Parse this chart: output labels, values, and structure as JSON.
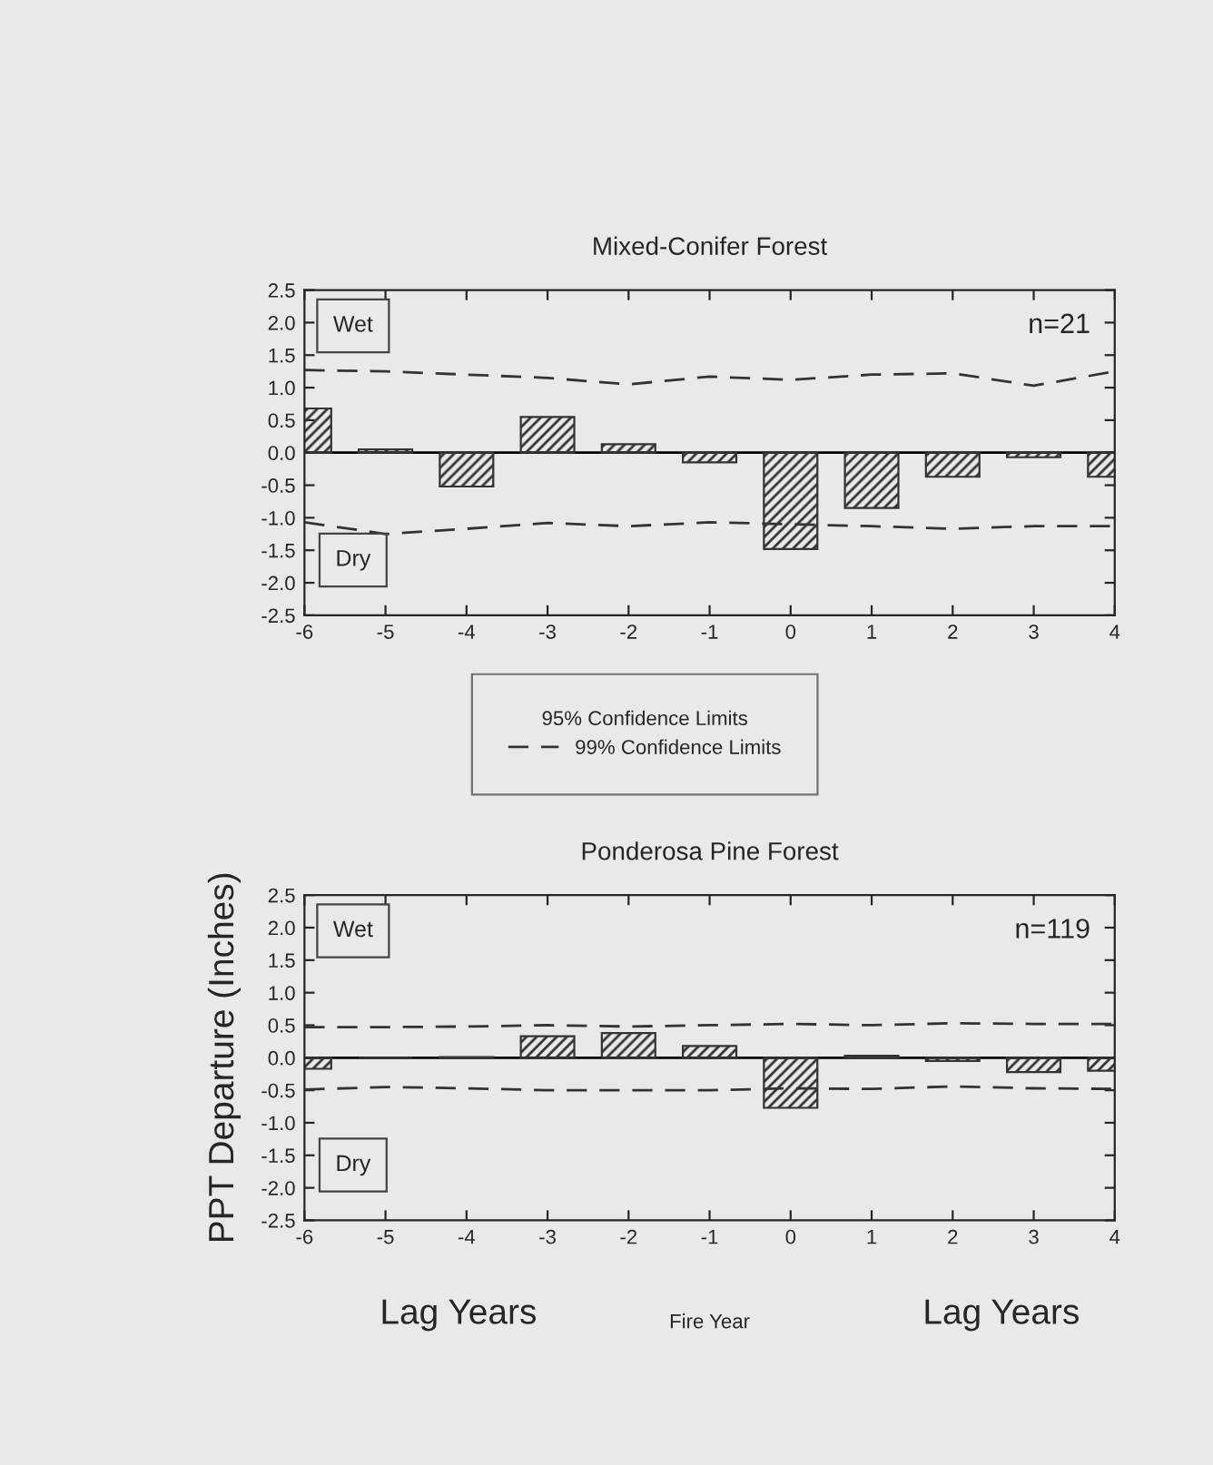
{
  "chart_data": [
    {
      "type": "bar",
      "title": "Mixed-Conifer Forest",
      "x": [
        -6,
        -5,
        -4,
        -3,
        -2,
        -1,
        0,
        1,
        2,
        3,
        4
      ],
      "series": [
        {
          "color": "#333333",
          "values": [
            0.68,
            0.05,
            -0.52,
            0.55,
            0.13,
            -0.15,
            -1.48,
            -0.85,
            -0.37,
            -0.07,
            -0.37
          ]
        },
        {
          "type": "line",
          "name": "99% Confidence Limits",
          "color": "#333333",
          "line_style": "dashed",
          "values": [
            1.27,
            1.25,
            1.2,
            1.15,
            1.05,
            1.17,
            1.12,
            1.2,
            1.22,
            1.03,
            1.25
          ]
        },
        {
          "type": "line",
          "color": "#333333",
          "line_style": "dashed",
          "values": [
            -1.07,
            -1.25,
            -1.17,
            -1.08,
            -1.13,
            -1.07,
            -1.1,
            -1.13,
            -1.17,
            -1.13,
            -1.13
          ]
        }
      ],
      "legend": "bottom",
      "legend_title": "95% Confidence Limits",
      "annotations": [
        "Wet",
        "Dry",
        "n=21"
      ],
      "xlim": [
        -6,
        4
      ],
      "xticks": [
        -6,
        -5,
        -4,
        -3,
        -2,
        -1,
        0,
        1,
        2,
        3,
        4
      ],
      "ylim": [
        -2.5,
        2.5
      ],
      "yticks": [
        {
          "value": -2.5,
          "label": "-2.5"
        },
        {
          "value": -2.0,
          "label": "-2.0"
        },
        {
          "value": -1.5,
          "label": "-1.5"
        },
        {
          "value": -1.0,
          "label": "-1.0"
        },
        {
          "value": -0.5,
          "label": "-0.5"
        },
        {
          "value": 0,
          "label": "0.0"
        },
        {
          "value": 0.5,
          "label": "0.5"
        },
        {
          "value": 1.0,
          "label": "1.0"
        },
        {
          "value": 1.5,
          "label": "1.5"
        },
        {
          "value": 2.0,
          "label": "2.0"
        },
        {
          "value": 2.5,
          "label": "2.5"
        }
      ]
    },
    {
      "type": "bar",
      "title": "Ponderosa Pine Forest",
      "ylabel": "PPT Departure (Inches)",
      "xlabel": "Fire Year",
      "x": [
        -6,
        -5,
        -4,
        -3,
        -2,
        -1,
        0,
        1,
        2,
        3,
        4
      ],
      "series": [
        {
          "color": "#333333",
          "values": [
            -0.17,
            0,
            0.01,
            0.33,
            0.38,
            0.18,
            -0.77,
            0.03,
            -0.05,
            -0.22,
            -0.2
          ]
        },
        {
          "type": "line",
          "color": "#333333",
          "line_style": "dashed",
          "values": [
            0.47,
            0.47,
            0.48,
            0.5,
            0.48,
            0.5,
            0.52,
            0.5,
            0.53,
            0.52,
            0.52
          ]
        },
        {
          "type": "line",
          "color": "#333333",
          "line_style": "dashed",
          "values": [
            -0.49,
            -0.45,
            -0.47,
            -0.5,
            -0.5,
            -0.5,
            -0.47,
            -0.48,
            -0.44,
            -0.47,
            -0.48
          ]
        }
      ],
      "legend": false,
      "annotations": [
        "Wet",
        "Dry",
        "n=119",
        "Lag Years",
        "Lag Years"
      ],
      "xlim": [
        -6,
        4
      ],
      "xticks": [
        -6,
        -5,
        -4,
        -3,
        -2,
        -1,
        0,
        1,
        2,
        3,
        4
      ],
      "ylim": [
        -2.5,
        2.5
      ],
      "yticks": [
        {
          "value": -2.5,
          "label": "-2.5"
        },
        {
          "value": -2.0,
          "label": "-2.0"
        },
        {
          "value": -1.5,
          "label": "-1.5"
        },
        {
          "value": -1.0,
          "label": "-1.0"
        },
        {
          "value": -0.5,
          "label": "-0.5"
        },
        {
          "value": 0,
          "label": "0.0"
        },
        {
          "value": 0.5,
          "label": "0.5"
        },
        {
          "value": 1.0,
          "label": "1.0"
        },
        {
          "value": 1.5,
          "label": "1.5"
        },
        {
          "value": 2.0,
          "label": "2.0"
        },
        {
          "value": 2.5,
          "label": "2.5"
        }
      ]
    }
  ]
}
